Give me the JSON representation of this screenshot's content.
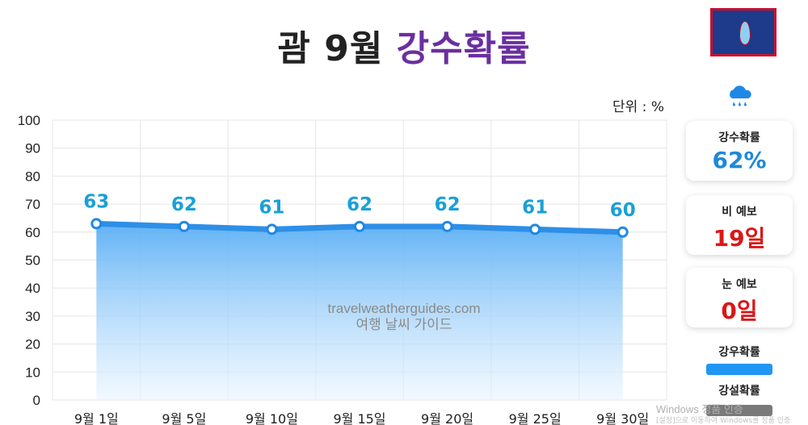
{
  "title": {
    "main": "괌 9월",
    "accent": "강수확률"
  },
  "unit_label": "단위 : %",
  "watermark": {
    "line1": "travelweatherguides.com",
    "line2": "여행 날씨 가이드"
  },
  "cards": [
    {
      "label": "강수확률",
      "value": "62%",
      "color": "#1e88d8"
    },
    {
      "label": "비 예보",
      "value": "19일",
      "color": "#d81818"
    },
    {
      "label": "눈 예보",
      "value": "0일",
      "color": "#d81818"
    }
  ],
  "legend": [
    {
      "label": "강우확률",
      "color": "#2196f3"
    },
    {
      "label": "강설확률",
      "color": "#7a7a7a"
    }
  ],
  "windows_notice": {
    "line1": "Windows 정품 인증",
    "line2": "[설정]으로 이동하여 Windows를 정품 인증"
  },
  "colors": {
    "line": "#2e8fe8",
    "point_stroke": "#1e88e5",
    "data_label": "#1aa0d8",
    "area_top": "#5aaff5"
  },
  "chart_data": {
    "type": "area",
    "categories": [
      "9월 1일",
      "9월 5일",
      "9월 10일",
      "9월 15일",
      "9월 20일",
      "9월 25일",
      "9월 30일"
    ],
    "series": [
      {
        "name": "강우확률",
        "values": [
          63,
          62,
          61,
          62,
          62,
          61,
          60
        ]
      }
    ],
    "ylim": [
      0,
      100
    ],
    "yticks": [
      0,
      10,
      20,
      30,
      40,
      50,
      60,
      70,
      80,
      90,
      100
    ],
    "grid": true,
    "data_labels": true
  }
}
